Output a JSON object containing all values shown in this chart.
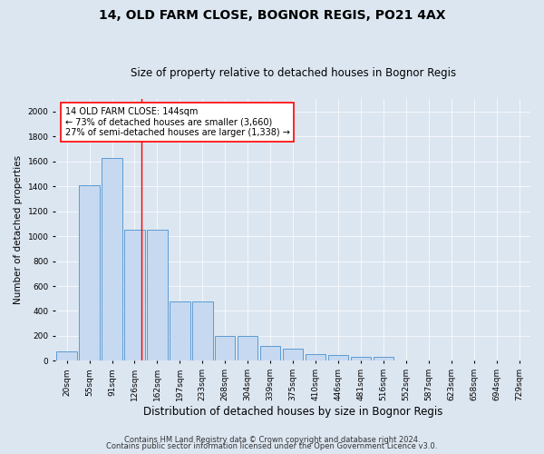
{
  "title": "14, OLD FARM CLOSE, BOGNOR REGIS, PO21 4AX",
  "subtitle": "Size of property relative to detached houses in Bognor Regis",
  "xlabel": "Distribution of detached houses by size in Bognor Regis",
  "ylabel": "Number of detached properties",
  "bar_color": "#c6d9f0",
  "bar_edge_color": "#5b9bd5",
  "background_color": "#dce6f1",
  "plot_bg_color": "#dce6f1",
  "annotation_box_text": "14 OLD FARM CLOSE: 144sqm\n← 73% of detached houses are smaller (3,660)\n27% of semi-detached houses are larger (1,338) →",
  "annotation_box_color": "red",
  "vline_x": 3.3,
  "categories": [
    "20sqm",
    "55sqm",
    "91sqm",
    "126sqm",
    "162sqm",
    "197sqm",
    "233sqm",
    "268sqm",
    "304sqm",
    "339sqm",
    "375sqm",
    "410sqm",
    "446sqm",
    "481sqm",
    "516sqm",
    "552sqm",
    "587sqm",
    "623sqm",
    "658sqm",
    "694sqm",
    "729sqm"
  ],
  "values": [
    75,
    1410,
    1630,
    1050,
    1050,
    480,
    480,
    200,
    200,
    120,
    100,
    55,
    50,
    35,
    30,
    0,
    0,
    0,
    0,
    0,
    0
  ],
  "ylim": [
    0,
    2100
  ],
  "yticks": [
    0,
    200,
    400,
    600,
    800,
    1000,
    1200,
    1400,
    1600,
    1800,
    2000
  ],
  "footer1": "Contains HM Land Registry data © Crown copyright and database right 2024.",
  "footer2": "Contains public sector information licensed under the Open Government Licence v3.0.",
  "title_fontsize": 10,
  "subtitle_fontsize": 8.5,
  "xlabel_fontsize": 8.5,
  "ylabel_fontsize": 7.5,
  "tick_fontsize": 6.5,
  "footer_fontsize": 6,
  "annotation_fontsize": 7
}
